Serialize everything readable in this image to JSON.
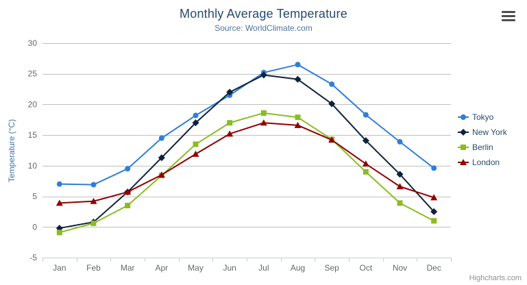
{
  "header": {
    "title": "Monthly Average Temperature",
    "subtitle": "Source: WorldClimate.com"
  },
  "export_menu": {
    "icon": "hamburger-menu-icon"
  },
  "credits": {
    "label": "Highcharts.com"
  },
  "colors": {
    "title": "#274b6d",
    "subtitle": "#4d759e",
    "axis_labels": "#666666",
    "y_axis_title": "#4572a7",
    "grid": "#c0c0c0",
    "axis_line": "#c0d0e0",
    "legend_text": "#274b6d",
    "credits_text": "#909090",
    "export_icon": "#4d4d4d",
    "background": "#ffffff"
  },
  "chart_data": {
    "type": "line",
    "title": "Monthly Average Temperature",
    "subtitle": "Source: WorldClimate.com",
    "xlabel": "",
    "ylabel": "Temperature (°C)",
    "categories": [
      "Jan",
      "Feb",
      "Mar",
      "Apr",
      "May",
      "Jun",
      "Jul",
      "Aug",
      "Sep",
      "Oct",
      "Nov",
      "Dec"
    ],
    "ylim": [
      -5,
      30
    ],
    "yticks": [
      -5,
      0,
      5,
      10,
      15,
      20,
      25,
      30
    ],
    "grid": true,
    "legend_position": "right",
    "series": [
      {
        "name": "Tokyo",
        "color": "#2f7ed8",
        "marker": "circle",
        "values": [
          7.0,
          6.9,
          9.5,
          14.5,
          18.2,
          21.5,
          25.2,
          26.5,
          23.3,
          18.3,
          13.9,
          9.6
        ]
      },
      {
        "name": "New York",
        "color": "#0d233a",
        "marker": "diamond",
        "values": [
          -0.2,
          0.8,
          5.7,
          11.3,
          17.0,
          22.0,
          24.8,
          24.1,
          20.1,
          14.1,
          8.6,
          2.5
        ]
      },
      {
        "name": "Berlin",
        "color": "#8bbc21",
        "marker": "square",
        "values": [
          -0.9,
          0.6,
          3.5,
          8.4,
          13.5,
          17.0,
          18.6,
          17.9,
          14.3,
          9.0,
          3.9,
          1.0
        ]
      },
      {
        "name": "London",
        "color": "#910000",
        "marker": "triangle",
        "values": [
          3.9,
          4.2,
          5.7,
          8.5,
          11.9,
          15.2,
          17.0,
          16.6,
          14.2,
          10.3,
          6.6,
          4.8
        ]
      }
    ]
  }
}
